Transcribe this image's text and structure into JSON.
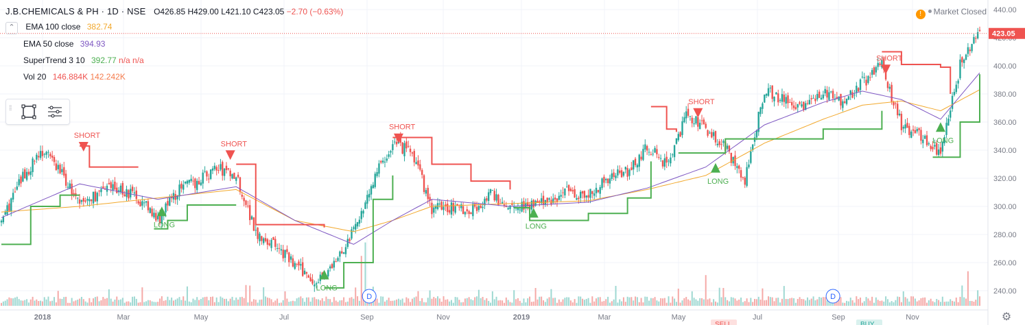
{
  "header": {
    "symbol": "J.B.CHEMICALS & PH · 1D · NSE",
    "o_label": "O",
    "o": "426.85",
    "h_label": "H",
    "h": "429.00",
    "l_label": "L",
    "l": "421.10",
    "c_label": "C",
    "c": "423.05",
    "change": "−2.70 (−0.63%)"
  },
  "status": {
    "market": "Market Closed",
    "warn_icon": "!"
  },
  "indicators": {
    "ema100": {
      "name": "EMA 100 close",
      "value": "382.74",
      "color": "#f2a82c"
    },
    "ema50": {
      "name": "EMA 50 close",
      "value": "394.93",
      "color": "#7e57c2"
    },
    "supertrend": {
      "name": "SuperTrend 3 10",
      "value": "392.77",
      "na1": "n/a",
      "na2": "n/a",
      "up_color": "#4caf50",
      "down_color": "#ef5350"
    },
    "vol": {
      "name": "Vol 20",
      "value1": "146.884K",
      "value2": "142.242K",
      "color1": "#ef5350",
      "color2": "#f57c4c"
    }
  },
  "colors": {
    "up": "#26a69a",
    "down": "#ef5350",
    "grid": "#f0f3fa",
    "axis_text": "#787b86",
    "last_price_bg": "#ef5350"
  },
  "chart_data": {
    "type": "candlestick",
    "title": "J.B.CHEMICALS & PH · 1D · NSE",
    "x_ticks": [
      "2018",
      "Mar",
      "May",
      "Jul",
      "Sep",
      "Nov",
      "2019",
      "Mar",
      "May",
      "Jul",
      "Sep",
      "Nov"
    ],
    "y_ticks": [
      440,
      420,
      400,
      380,
      360,
      340,
      320,
      300,
      280,
      260,
      240
    ],
    "ylim": [
      232,
      443
    ],
    "last_price": "423.05",
    "series": [
      {
        "name": "Price",
        "x": [
          0,
          10,
          20,
          30,
          40,
          50,
          60,
          70,
          80,
          90,
          100,
          110,
          120,
          130,
          140,
          150,
          160,
          170,
          180,
          190,
          200,
          210,
          220,
          230,
          240,
          250,
          260,
          270,
          280,
          290,
          300,
          310,
          320,
          330,
          340,
          350,
          360,
          370,
          380,
          390,
          400,
          410,
          420,
          430,
          440,
          450,
          460,
          470,
          480,
          490,
          500
        ],
        "values": [
          290,
          318,
          340,
          326,
          300,
          310,
          313,
          306,
          290,
          311,
          318,
          327,
          322,
          282,
          272,
          258,
          247,
          258,
          282,
          318,
          345,
          338,
          298,
          300,
          297,
          308,
          300,
          302,
          303,
          312,
          307,
          321,
          325,
          342,
          330,
          364,
          356,
          342,
          317,
          384,
          375,
          372,
          381,
          375,
          388,
          400,
          358,
          350,
          338,
          400,
          423
        ]
      },
      {
        "name": "EMA 50 close",
        "x": [
          0,
          40,
          80,
          120,
          150,
          180,
          200,
          220,
          260,
          300,
          330,
          360,
          390,
          420,
          440,
          460,
          480,
          500
        ],
        "values": [
          292,
          316,
          305,
          314,
          290,
          273,
          290,
          305,
          300,
          303,
          313,
          328,
          358,
          374,
          382,
          376,
          362,
          395
        ]
      },
      {
        "name": "EMA 100 close",
        "x": [
          0,
          40,
          80,
          120,
          150,
          180,
          200,
          220,
          260,
          300,
          330,
          360,
          390,
          420,
          440,
          460,
          480,
          500
        ],
        "values": [
          296,
          300,
          306,
          312,
          290,
          282,
          290,
          300,
          302,
          304,
          312,
          322,
          345,
          362,
          372,
          375,
          368,
          383
        ]
      },
      {
        "name": "SuperTrend 3 10",
        "segments": [
          {
            "trend": "up",
            "x": [
              0,
              15,
              30,
              40
            ],
            "values": [
              273,
              300,
              308,
              308
            ]
          },
          {
            "trend": "down",
            "x": [
              40,
              45,
              60,
              70
            ],
            "values": [
              343,
              328,
              328,
              328
            ]
          },
          {
            "trend": "up",
            "x": [
              78,
              85,
              95,
              120
            ],
            "values": [
              284,
              290,
              301,
              301
            ]
          },
          {
            "trend": "down",
            "x": [
              120,
              130,
              160,
              165
            ],
            "values": [
              330,
              287,
              287,
              285
            ]
          },
          {
            "trend": "up",
            "x": [
              165,
              175,
              190,
              200
            ],
            "values": [
              242,
              260,
              305,
              322
            ]
          },
          {
            "trend": "down",
            "x": [
              200,
              220,
              240,
              260
            ],
            "values": [
              349,
              330,
              318,
              312
            ]
          },
          {
            "trend": "up",
            "x": [
              262,
              270,
              300,
              320,
              332
            ],
            "values": [
              299,
              290,
              295,
              306,
              332
            ]
          },
          {
            "trend": "down",
            "x": [
              332,
              340,
              345
            ],
            "values": [
              371,
              355,
              353
            ]
          },
          {
            "trend": "up",
            "x": [
              346,
              370,
              420,
              450
            ],
            "values": [
              338,
              348,
              355,
              368
            ]
          },
          {
            "trend": "down",
            "x": [
              450,
              460,
              480,
              485
            ],
            "values": [
              410,
              401,
              399,
              380
            ]
          },
          {
            "trend": "up",
            "x": [
              476,
              490,
              500
            ],
            "values": [
              335,
              360,
              394
            ]
          }
        ]
      }
    ],
    "signals": [
      {
        "type": "SHORT",
        "x": 42,
        "price": 340
      },
      {
        "type": "LONG",
        "x": 82,
        "price": 294
      },
      {
        "type": "SHORT",
        "x": 117,
        "price": 334
      },
      {
        "type": "LONG",
        "x": 165,
        "price": 249
      },
      {
        "type": "SHORT",
        "x": 203,
        "price": 346
      },
      {
        "type": "LONG",
        "x": 272,
        "price": 293
      },
      {
        "type": "SHORT",
        "x": 356,
        "price": 364
      },
      {
        "type": "LONG",
        "x": 365,
        "price": 325
      },
      {
        "type": "SHORT",
        "x": 452,
        "price": 395
      },
      {
        "type": "LONG",
        "x": 480,
        "price": 354
      }
    ],
    "dividend_markers": [
      {
        "label": "D",
        "x": 188
      },
      {
        "label": "D",
        "x": 425
      }
    ],
    "bottom_labels": [
      "SELL",
      "BUY"
    ]
  }
}
